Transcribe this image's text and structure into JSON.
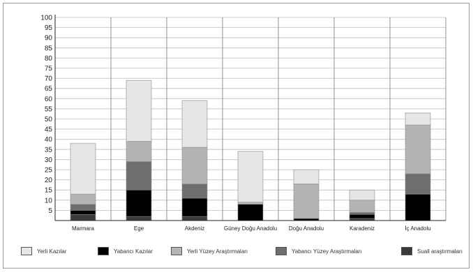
{
  "chart_data": {
    "type": "bar",
    "stacked": true,
    "categories": [
      "Marmara",
      "Ege",
      "Akdeniz",
      "Güney Doğu Anadolu",
      "Doğu Anadolu",
      "Karadeniz",
      "İç Anadolu"
    ],
    "series": [
      {
        "name": "Suall araştırmaları",
        "color": "#3a3a3a",
        "values": [
          3,
          2,
          2,
          0,
          0,
          1,
          0
        ]
      },
      {
        "name": "Yabancı Kazılar",
        "color": "#000000",
        "values": [
          2,
          13,
          9,
          8,
          1,
          2,
          13
        ]
      },
      {
        "name": "Yabancı Yüzey Araştırmaları",
        "color": "#6e6e6e",
        "values": [
          3,
          14,
          7,
          0,
          0,
          1,
          10
        ]
      },
      {
        "name": "Yerli Yüzey Araştırmaları",
        "color": "#b4b4b4",
        "values": [
          5,
          10,
          18,
          1,
          17,
          6,
          24
        ]
      },
      {
        "name": "Yerli Kazılar",
        "color": "#e6e6e6",
        "values": [
          25,
          30,
          23,
          25,
          7,
          5,
          6
        ]
      }
    ],
    "legend_order": [
      "Yerli Kazılar",
      "Yabancı Kazılar",
      "Yerli Yüzey Araştırmaları",
      "Yabancı Yüzey Araştırmaları",
      "Suall araştırmaları"
    ],
    "y_ticks": [
      5,
      10,
      15,
      20,
      25,
      30,
      35,
      40,
      45,
      50,
      55,
      60,
      65,
      70,
      75,
      80,
      85,
      90,
      95,
      100
    ],
    "ylim": [
      0,
      100
    ],
    "grid": true,
    "legend_position": "bottom",
    "title": "",
    "xlabel": "",
    "ylabel": ""
  }
}
